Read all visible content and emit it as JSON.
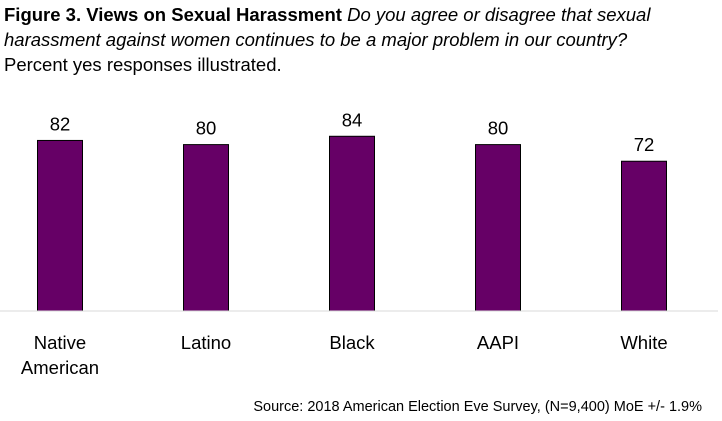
{
  "chart_data": {
    "type": "bar",
    "title": "Figure 3. Views on Sexual Harassment",
    "question": "Do you agree or disagree that sexual harassment against women continues to be a major problem in our country?",
    "subtitle": "Percent yes responses illustrated.",
    "categories": [
      [
        "Native",
        "American"
      ],
      [
        "Latino"
      ],
      [
        "Black"
      ],
      [
        "AAPI"
      ],
      [
        "White"
      ]
    ],
    "values": [
      82,
      80,
      84,
      80,
      72
    ],
    "ylim": [
      0,
      100
    ],
    "bar_color": "#660066",
    "grid": false,
    "legend": "none",
    "source": "Source: 2018 American Election Eve Survey, (N=9,400) MoE +/- 1.9%"
  }
}
